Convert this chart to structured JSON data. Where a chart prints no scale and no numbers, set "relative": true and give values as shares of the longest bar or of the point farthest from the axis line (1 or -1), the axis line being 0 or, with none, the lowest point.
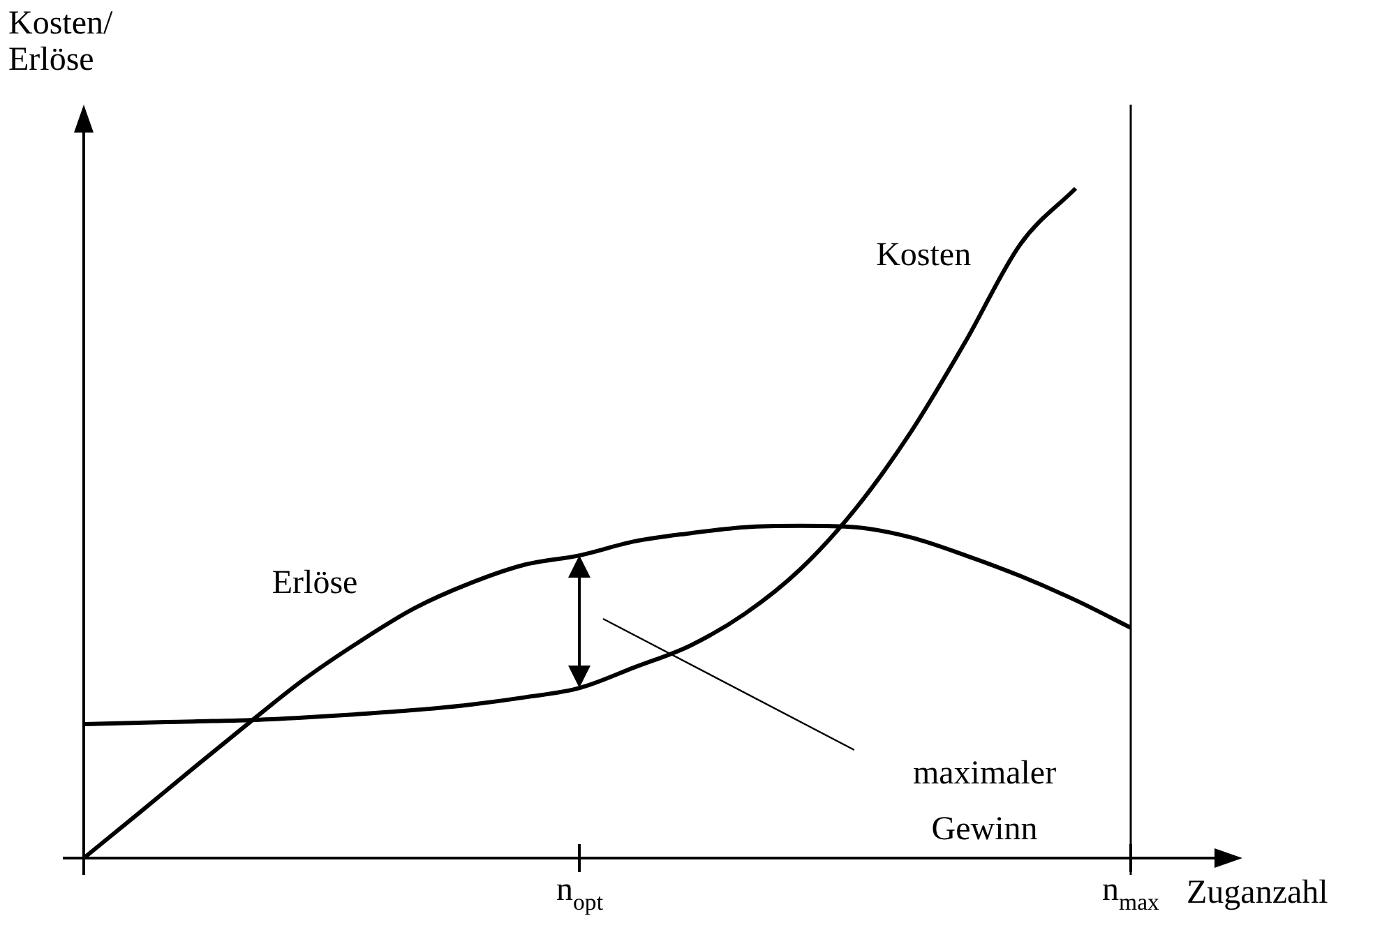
{
  "chart_data": {
    "type": "line",
    "relative": true,
    "ylabel": "Kosten/ Erlöse",
    "xlabel": "Zuganzahl",
    "legend": false,
    "marker": "none",
    "line_style": "solid",
    "categories": [
      null,
      null,
      null,
      null,
      null,
      null,
      null,
      null,
      null,
      "n$_{opt}$",
      null,
      null,
      null,
      null,
      null,
      null,
      null,
      null,
      null,
      "n$_{max}$"
    ],
    "series": [
      {
        "name": "Kosten",
        "color": "#000000",
        "values": [
          0.2,
          0.202,
          0.204,
          0.206,
          0.21,
          0.215,
          0.221,
          0.229,
          0.24,
          0.254,
          0.285,
          0.317,
          0.365,
          0.431,
          0.521,
          0.635,
          0.771,
          0.917,
          1,
          null
        ]
      },
      {
        "name": "Erlöse",
        "color": "#000000",
        "values": [
          0,
          0.067,
          0.135,
          0.202,
          0.267,
          0.323,
          0.373,
          0.41,
          0.438,
          0.452,
          0.473,
          0.485,
          0.494,
          0.496,
          0.494,
          0.479,
          0.452,
          0.421,
          0.385,
          0.344
        ]
      }
    ],
    "ref_lines": [
      {
        "axis": "x",
        "value": "n$_{max}$",
        "color": "#000000",
        "line_style": "solid"
      }
    ],
    "annotations": [
      "maximaler Gewinn"
    ]
  }
}
